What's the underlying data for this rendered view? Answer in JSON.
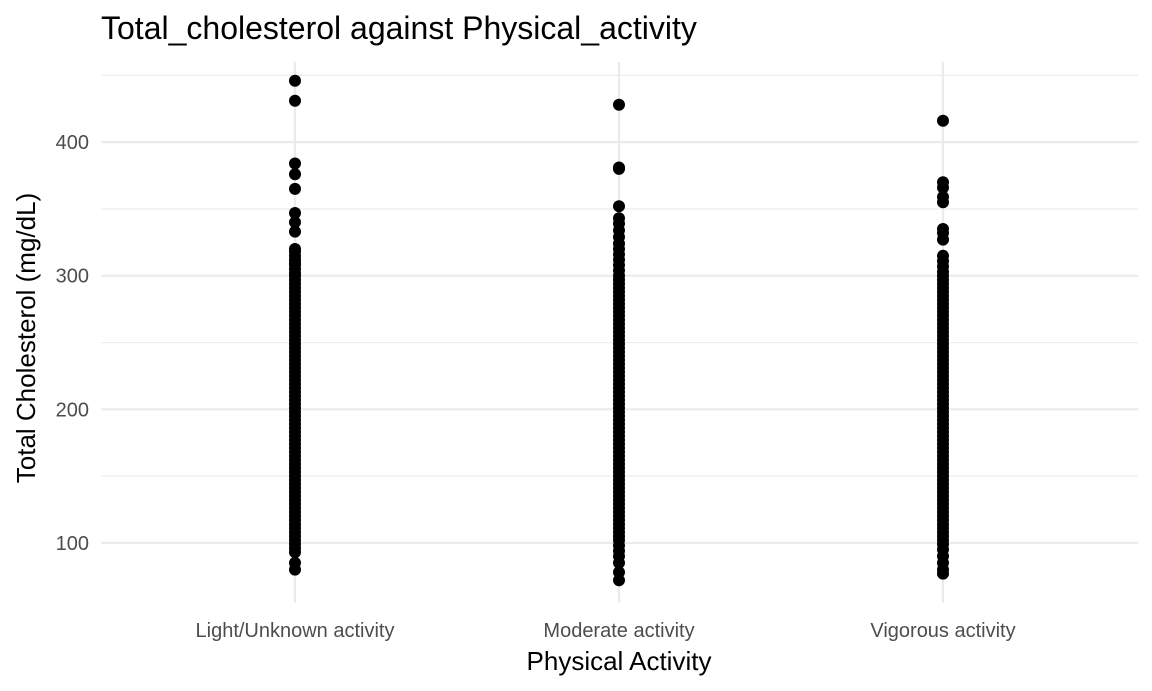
{
  "chart_data": {
    "type": "scatter",
    "title": "Total_cholesterol against Physical_activity",
    "xlabel": "Physical Activity",
    "ylabel": "Total Cholesterol (mg/dL)",
    "categories": [
      "Light/Unknown activity",
      "Moderate activity",
      "Vigorous activity"
    ],
    "ylim": [
      55,
      460
    ],
    "yticks": [
      100,
      200,
      300,
      400
    ],
    "y_minor_ticks": [
      150,
      250,
      350,
      450
    ],
    "grid": true,
    "series": [
      {
        "color": "#000000",
        "points_by_category": [
          {
            "category": "Light/Unknown activity",
            "y": [
              446,
              431,
              384,
              376,
              365,
              347,
              340,
              333,
              320,
              318,
              315,
              312,
              310,
              308,
              305,
              302,
              300,
              297,
              294,
              291,
              288,
              285,
              282,
              279,
              276,
              273,
              270,
              267,
              264,
              261,
              258,
              255,
              252,
              249,
              246,
              243,
              240,
              237,
              234,
              231,
              228,
              225,
              222,
              219,
              216,
              213,
              210,
              207,
              204,
              201,
              198,
              195,
              192,
              189,
              186,
              183,
              180,
              177,
              174,
              171,
              168,
              165,
              162,
              159,
              156,
              153,
              150,
              147,
              144,
              141,
              138,
              135,
              132,
              129,
              126,
              123,
              120,
              117,
              114,
              111,
              108,
              105,
              102,
              99,
              96,
              93,
              85,
              80
            ]
          },
          {
            "category": "Moderate activity",
            "y": [
              428,
              381,
              380,
              352,
              343,
              339,
              334,
              329,
              324,
              320,
              316,
              312,
              308,
              304,
              300,
              297,
              294,
              291,
              288,
              285,
              282,
              279,
              276,
              273,
              270,
              267,
              264,
              261,
              258,
              255,
              252,
              249,
              246,
              243,
              240,
              237,
              234,
              231,
              228,
              225,
              222,
              219,
              216,
              213,
              210,
              207,
              204,
              201,
              198,
              195,
              192,
              189,
              186,
              183,
              180,
              177,
              174,
              171,
              168,
              165,
              162,
              159,
              156,
              153,
              150,
              147,
              144,
              141,
              138,
              135,
              132,
              129,
              126,
              123,
              120,
              117,
              114,
              111,
              108,
              105,
              102,
              98,
              94,
              90,
              85,
              78,
              72
            ]
          },
          {
            "category": "Vigorous activity",
            "y": [
              416,
              370,
              366,
              359,
              355,
              335,
              332,
              327,
              315,
              311,
              307,
              303,
              300,
              297,
              294,
              291,
              288,
              285,
              282,
              279,
              276,
              273,
              270,
              267,
              264,
              261,
              258,
              255,
              252,
              249,
              246,
              243,
              240,
              237,
              234,
              231,
              228,
              225,
              222,
              219,
              216,
              213,
              210,
              207,
              204,
              201,
              198,
              195,
              192,
              189,
              186,
              183,
              180,
              177,
              174,
              171,
              168,
              165,
              162,
              159,
              156,
              153,
              150,
              147,
              144,
              141,
              138,
              135,
              132,
              129,
              126,
              123,
              120,
              117,
              114,
              111,
              108,
              105,
              102,
              99,
              95,
              90,
              85,
              80,
              77
            ]
          }
        ]
      }
    ]
  }
}
